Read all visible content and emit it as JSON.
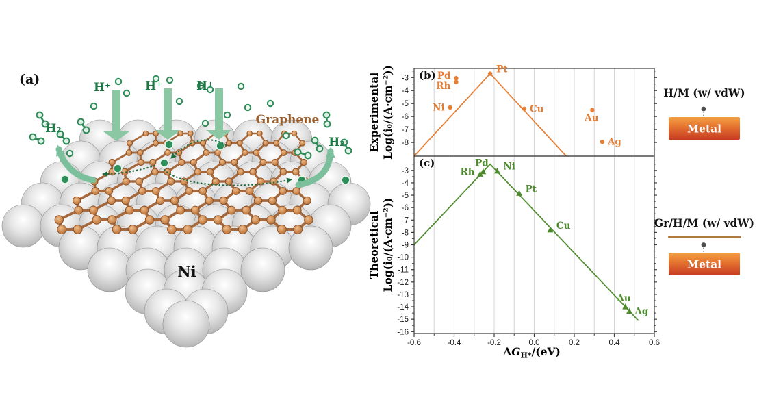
{
  "panel_a": {
    "label": "(a)",
    "proton_label": "H⁺",
    "h2_label": "H₂",
    "graphene_label": "Graphene",
    "metal_label": "Ni",
    "colors": {
      "green_text": "#1d7a46",
      "arrow_green": "#8cc7a4",
      "carbon_atom": "#c9854e",
      "carbon_bond": "#a5693d",
      "sphere_grey": "#c9c9c9"
    }
  },
  "legend": {
    "hm_title": "H/M (w/ vdW)",
    "grhm_title": "Gr/H/M (w/ vdW)",
    "metal_label": "Metal",
    "metal_gradient_top": "#F4A043",
    "metal_gradient_bottom": "#C63A22",
    "graphene_line_color": "#B0793F"
  },
  "x_axis": {
    "tick_labels": [
      "-0.6",
      "-0.4",
      "-0.2",
      "0.0",
      "0.2",
      "0.4",
      "0.6"
    ],
    "title": {
      "pre": "Δ",
      "sym": "G",
      "sub": "H*",
      "post": "/(eV)"
    }
  },
  "chart_data": [
    {
      "type": "scatter",
      "panel_label": "(b)",
      "axis_title_lines": [
        "Experimental",
        "Log(i₀/(A·cm⁻²))"
      ],
      "color": "#E57E33",
      "marker": "circle",
      "legend_ref": "H/M (w/ vdW)",
      "xlabel": "ΔG_H*/(eV)",
      "xlim": [
        -0.6,
        0.6
      ],
      "ylim": [
        -9.05,
        -2.3
      ],
      "y_ticks": [
        -3,
        -4,
        -5,
        -6,
        -7,
        -8
      ],
      "x_ticks": [
        -0.6,
        -0.4,
        -0.2,
        0.0,
        0.2,
        0.4,
        0.6
      ],
      "grid_x_step": 0.1,
      "volcano_line": [
        [
          -0.6,
          -9.05
        ],
        [
          -0.22,
          -2.7
        ],
        [
          0.16,
          -9.05
        ]
      ],
      "points": [
        {
          "label": "Pd",
          "x": -0.39,
          "y": -3.05,
          "anchor": "left-above"
        },
        {
          "label": "Rh",
          "x": -0.39,
          "y": -3.35,
          "anchor": "left-below"
        },
        {
          "label": "Ni",
          "x": -0.42,
          "y": -5.3,
          "anchor": "left"
        },
        {
          "label": "Pt",
          "x": -0.22,
          "y": -2.7,
          "anchor": "right-above"
        },
        {
          "label": "Cu",
          "x": -0.05,
          "y": -5.4,
          "anchor": "right"
        },
        {
          "label": "Au",
          "x": 0.29,
          "y": -5.5,
          "anchor": "below"
        },
        {
          "label": "Ag",
          "x": 0.34,
          "y": -7.95,
          "anchor": "right"
        }
      ]
    },
    {
      "type": "scatter",
      "panel_label": "(c)",
      "axis_title_lines": [
        "Theoretical",
        "Log(i₀/(A·cm⁻²))"
      ],
      "color": "#4E8B2E",
      "marker": "triangle",
      "legend_ref": "Gr/H/M (w/ vdW)",
      "xlabel": "ΔG_H*/(eV)",
      "xlim": [
        -0.6,
        0.6
      ],
      "ylim": [
        -16.15,
        -1.85
      ],
      "y_ticks": [
        -3,
        -4,
        -5,
        -6,
        -7,
        -8,
        -9,
        -10,
        -11,
        -12,
        -13,
        -14,
        -15,
        -16
      ],
      "x_ticks": [
        -0.6,
        -0.4,
        -0.2,
        0.0,
        0.2,
        0.4,
        0.6
      ],
      "grid_x_step": 0.1,
      "volcano_line": [
        [
          -0.6,
          -9.0
        ],
        [
          -0.22,
          -2.5
        ],
        [
          0.52,
          -15.1
        ]
      ],
      "points": [
        {
          "label": "Rh",
          "x": -0.27,
          "y": -3.3,
          "anchor": "left-above"
        },
        {
          "label": "Pd",
          "x": -0.255,
          "y": -3.1,
          "anchor": "above"
        },
        {
          "label": "Ni",
          "x": -0.185,
          "y": -3.05,
          "anchor": "right-above"
        },
        {
          "label": "Pt",
          "x": -0.075,
          "y": -4.85,
          "anchor": "right-above"
        },
        {
          "label": "Cu",
          "x": 0.08,
          "y": -7.8,
          "anchor": "right-above"
        },
        {
          "label": "Au",
          "x": 0.455,
          "y": -14.0,
          "anchor": "above"
        },
        {
          "label": "Ag",
          "x": 0.475,
          "y": -14.35,
          "anchor": "right"
        }
      ]
    }
  ]
}
